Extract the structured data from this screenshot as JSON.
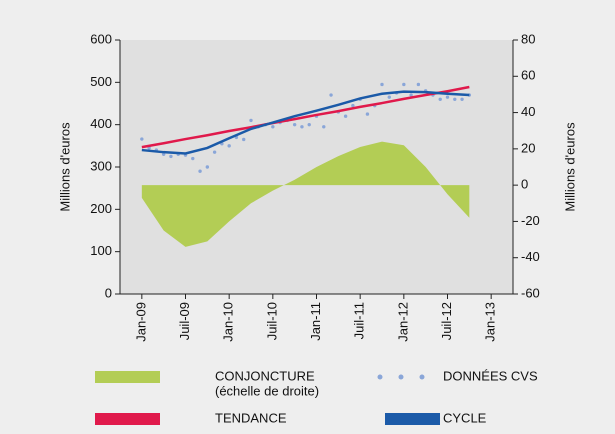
{
  "chart_data": {
    "type": "combo",
    "ylabel": "Millions d'euros",
    "y2label": "Millions d'euros",
    "x": [
      0,
      3,
      6,
      9,
      12,
      15,
      18,
      21,
      24,
      27,
      30,
      33,
      36,
      39,
      42,
      45
    ],
    "xlim": [
      -3,
      51
    ],
    "xticks": [
      {
        "value": 0,
        "label": "Jan-09"
      },
      {
        "value": 6,
        "label": "Juil-09"
      },
      {
        "value": 12,
        "label": "Jan-10"
      },
      {
        "value": 18,
        "label": "Juil-10"
      },
      {
        "value": 24,
        "label": "Jan-11"
      },
      {
        "value": 30,
        "label": "Juil-11"
      },
      {
        "value": 36,
        "label": "Jan-12"
      },
      {
        "value": 42,
        "label": "Juil-12"
      },
      {
        "value": 48,
        "label": "Jan-13"
      }
    ],
    "ylim": [
      0,
      600
    ],
    "yticks": [
      0,
      100,
      200,
      300,
      400,
      500,
      600
    ],
    "y2lim": [
      -60,
      80
    ],
    "y2ticks": [
      -60,
      -40,
      -20,
      0,
      20,
      40,
      60,
      80
    ],
    "series": [
      {
        "name": "CONJONCTURE",
        "name_note": "(échelle de droite)",
        "kind": "area",
        "axis": "y2",
        "color": "#b3cd55",
        "values": [
          -7,
          -25,
          -34,
          -31,
          -20,
          -10,
          -3,
          3,
          10,
          16,
          21,
          24,
          22,
          10,
          -5,
          -18
        ]
      },
      {
        "name": "DONNÉES CVS",
        "kind": "scatter",
        "color": "#8aa6d8",
        "x": [
          0,
          1,
          2,
          3,
          4,
          5,
          6,
          7,
          8,
          9,
          10,
          11,
          12,
          13,
          14,
          15,
          16,
          17,
          18,
          19,
          20,
          21,
          22,
          23,
          24,
          25,
          26,
          27,
          28,
          29,
          30,
          31,
          32,
          33,
          34,
          35,
          36,
          37,
          38,
          39,
          40,
          41,
          42,
          43,
          44,
          45
        ],
        "values": [
          366,
          345,
          340,
          330,
          325,
          330,
          328,
          320,
          290,
          300,
          335,
          355,
          350,
          370,
          365,
          410,
          395,
          400,
          395,
          405,
          410,
          400,
          395,
          400,
          420,
          395,
          470,
          430,
          420,
          445,
          460,
          425,
          445,
          495,
          465,
          475,
          495,
          470,
          495,
          480,
          470,
          460,
          465,
          460,
          460,
          470
        ]
      },
      {
        "name": "TENDANCE",
        "kind": "line",
        "color": "#e0194b",
        "values": [
          347,
          356,
          366,
          375,
          385,
          394,
          404,
          413,
          423,
          432,
          442,
          451,
          461,
          470,
          479,
          489
        ]
      },
      {
        "name": "CYCLE",
        "kind": "line",
        "color": "#1b5aa8",
        "values": [
          340,
          335,
          332,
          345,
          368,
          390,
          405,
          420,
          433,
          447,
          462,
          473,
          478,
          477,
          473,
          470
        ]
      }
    ]
  }
}
